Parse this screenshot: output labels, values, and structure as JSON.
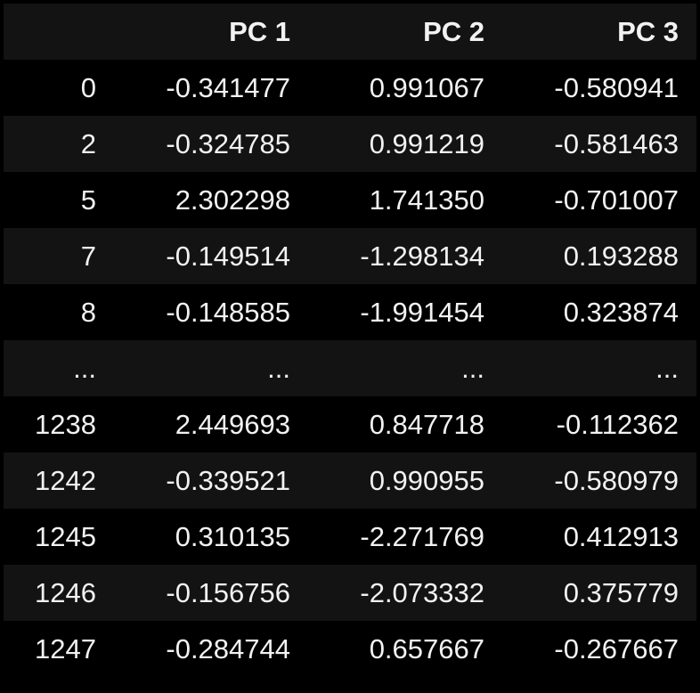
{
  "table": {
    "columns": [
      "",
      "PC 1",
      "PC 2",
      "PC 3"
    ],
    "rows": [
      {
        "index": "0",
        "values": [
          "-0.341477",
          "0.991067",
          "-0.580941"
        ]
      },
      {
        "index": "2",
        "values": [
          "-0.324785",
          "0.991219",
          "-0.581463"
        ]
      },
      {
        "index": "5",
        "values": [
          "2.302298",
          "1.741350",
          "-0.701007"
        ]
      },
      {
        "index": "7",
        "values": [
          "-0.149514",
          "-1.298134",
          "0.193288"
        ]
      },
      {
        "index": "8",
        "values": [
          "-0.148585",
          "-1.991454",
          "0.323874"
        ]
      },
      {
        "index": "...",
        "values": [
          "...",
          "...",
          "..."
        ]
      },
      {
        "index": "1238",
        "values": [
          "2.449693",
          "0.847718",
          "-0.112362"
        ]
      },
      {
        "index": "1242",
        "values": [
          "-0.339521",
          "0.990955",
          "-0.580979"
        ]
      },
      {
        "index": "1245",
        "values": [
          "0.310135",
          "-2.271769",
          "0.412913"
        ]
      },
      {
        "index": "1246",
        "values": [
          "-0.156756",
          "-2.073332",
          "0.375779"
        ]
      },
      {
        "index": "1247",
        "values": [
          "-0.284744",
          "0.657667",
          "-0.267667"
        ]
      }
    ]
  },
  "colors": {
    "background": "#000000",
    "stripe": "#131313",
    "text": "#f2f2f2"
  }
}
